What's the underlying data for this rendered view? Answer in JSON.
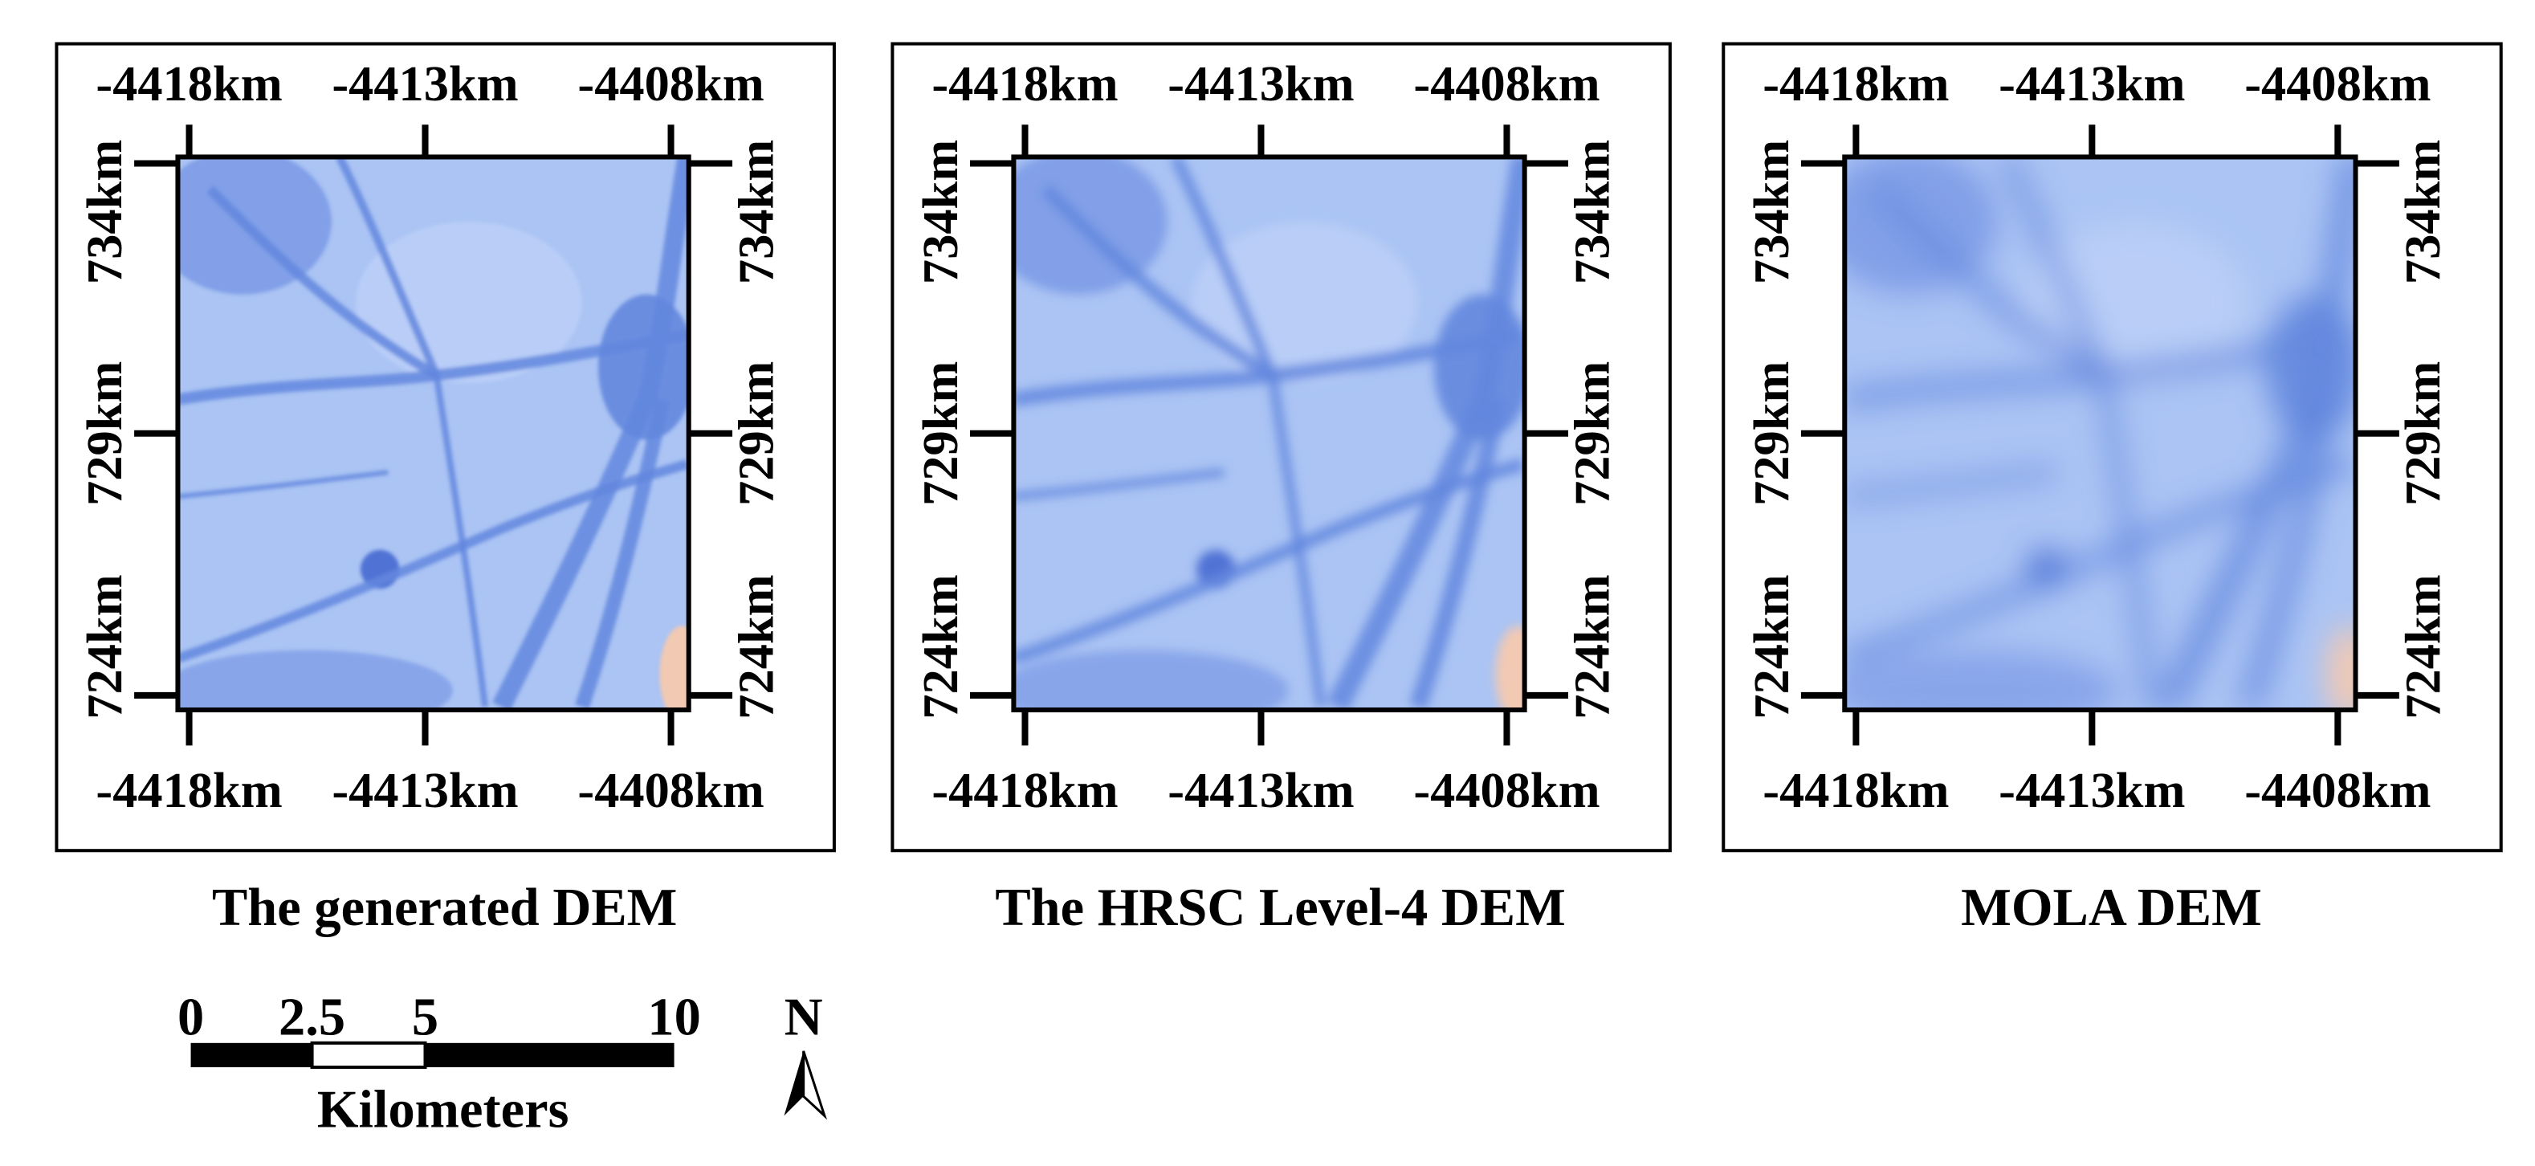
{
  "panels": [
    {
      "title": "The generated DEM",
      "x_ticks": [
        "-4418km",
        "-4413km",
        "-4408km"
      ],
      "y_ticks": [
        "734km",
        "729km",
        "724km"
      ]
    },
    {
      "title": "The HRSC Level-4 DEM",
      "x_ticks": [
        "-4418km",
        "-4413km",
        "-4408km"
      ],
      "y_ticks": [
        "734km",
        "729km",
        "724km"
      ]
    },
    {
      "title": "MOLA DEM",
      "x_ticks": [
        "-4418km",
        "-4413km",
        "-4408km"
      ],
      "y_ticks": [
        "734km",
        "729km",
        "724km"
      ]
    }
  ],
  "scale_bar": {
    "labels": [
      "0",
      "2.5",
      "5",
      "10"
    ],
    "unit": "Kilometers"
  },
  "north_arrow": "N"
}
